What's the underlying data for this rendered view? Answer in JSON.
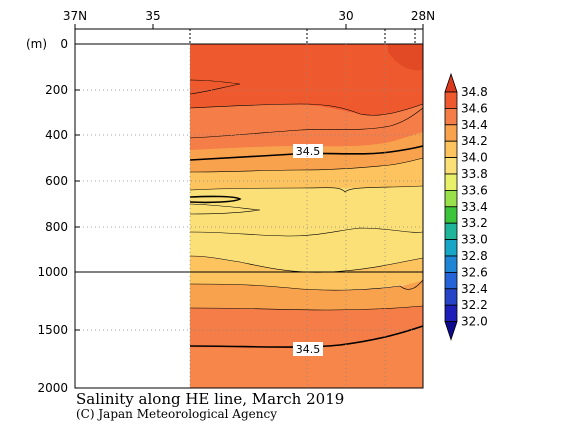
{
  "chart_data": {
    "type": "heatmap",
    "title": "Salinity along HE line, March 2019",
    "credit": "(C) Japan Meteorological Agency",
    "x_axis": {
      "tick_labels": [
        "37N",
        "35",
        "30",
        "28N"
      ],
      "tick_values": [
        37,
        35,
        30,
        28
      ],
      "data_start_lat": 34.0,
      "minor_tick_values": [
        34.0,
        32.0,
        31.0,
        30.0,
        29.0
      ]
    },
    "y_axis": {
      "unit_label": "(m)",
      "tick_labels": [
        "0",
        "200",
        "400",
        "600",
        "800",
        "1000",
        "1500",
        "2000"
      ],
      "tick_values": [
        0,
        200,
        400,
        600,
        800,
        1000,
        1500,
        2000
      ],
      "scale_break_depth": 1000
    },
    "colorbar": {
      "labels": [
        "34.8",
        "34.6",
        "34.4",
        "34.2",
        "34.0",
        "33.8",
        "33.6",
        "33.4",
        "33.2",
        "33.0",
        "32.8",
        "32.6",
        "32.4",
        "32.2",
        "32.0"
      ],
      "colors": [
        "#d9391f",
        "#ee5a2e",
        "#f57d47",
        "#f9a24e",
        "#fcc35e",
        "#fbe078",
        "#e8f06a",
        "#9ae04a",
        "#3cc43b",
        "#1fb59a",
        "#18a6c8",
        "#1f86d6",
        "#2464d8",
        "#2744c8",
        "#1d1fb8",
        "#0d0a8c"
      ]
    },
    "layers": [
      {
        "range": "> 34.6",
        "color": "#ee5a2e",
        "top_depth": [
          0,
          0
        ]
      },
      {
        "range": "34.4 - 34.6",
        "color": "#f57d47"
      },
      {
        "range": "34.2 - 34.4",
        "color": "#f9a24e"
      },
      {
        "range": "34.0 - 34.2",
        "color": "#fcc35e"
      },
      {
        "range": "33.8 - 34.0",
        "color": "#fbe078"
      }
    ],
    "contour_labels": [
      {
        "text": "34.5",
        "lat": 30.9,
        "depth": 500
      },
      {
        "text": "34.5",
        "lat": 30.9,
        "depth": 1600
      }
    ]
  }
}
